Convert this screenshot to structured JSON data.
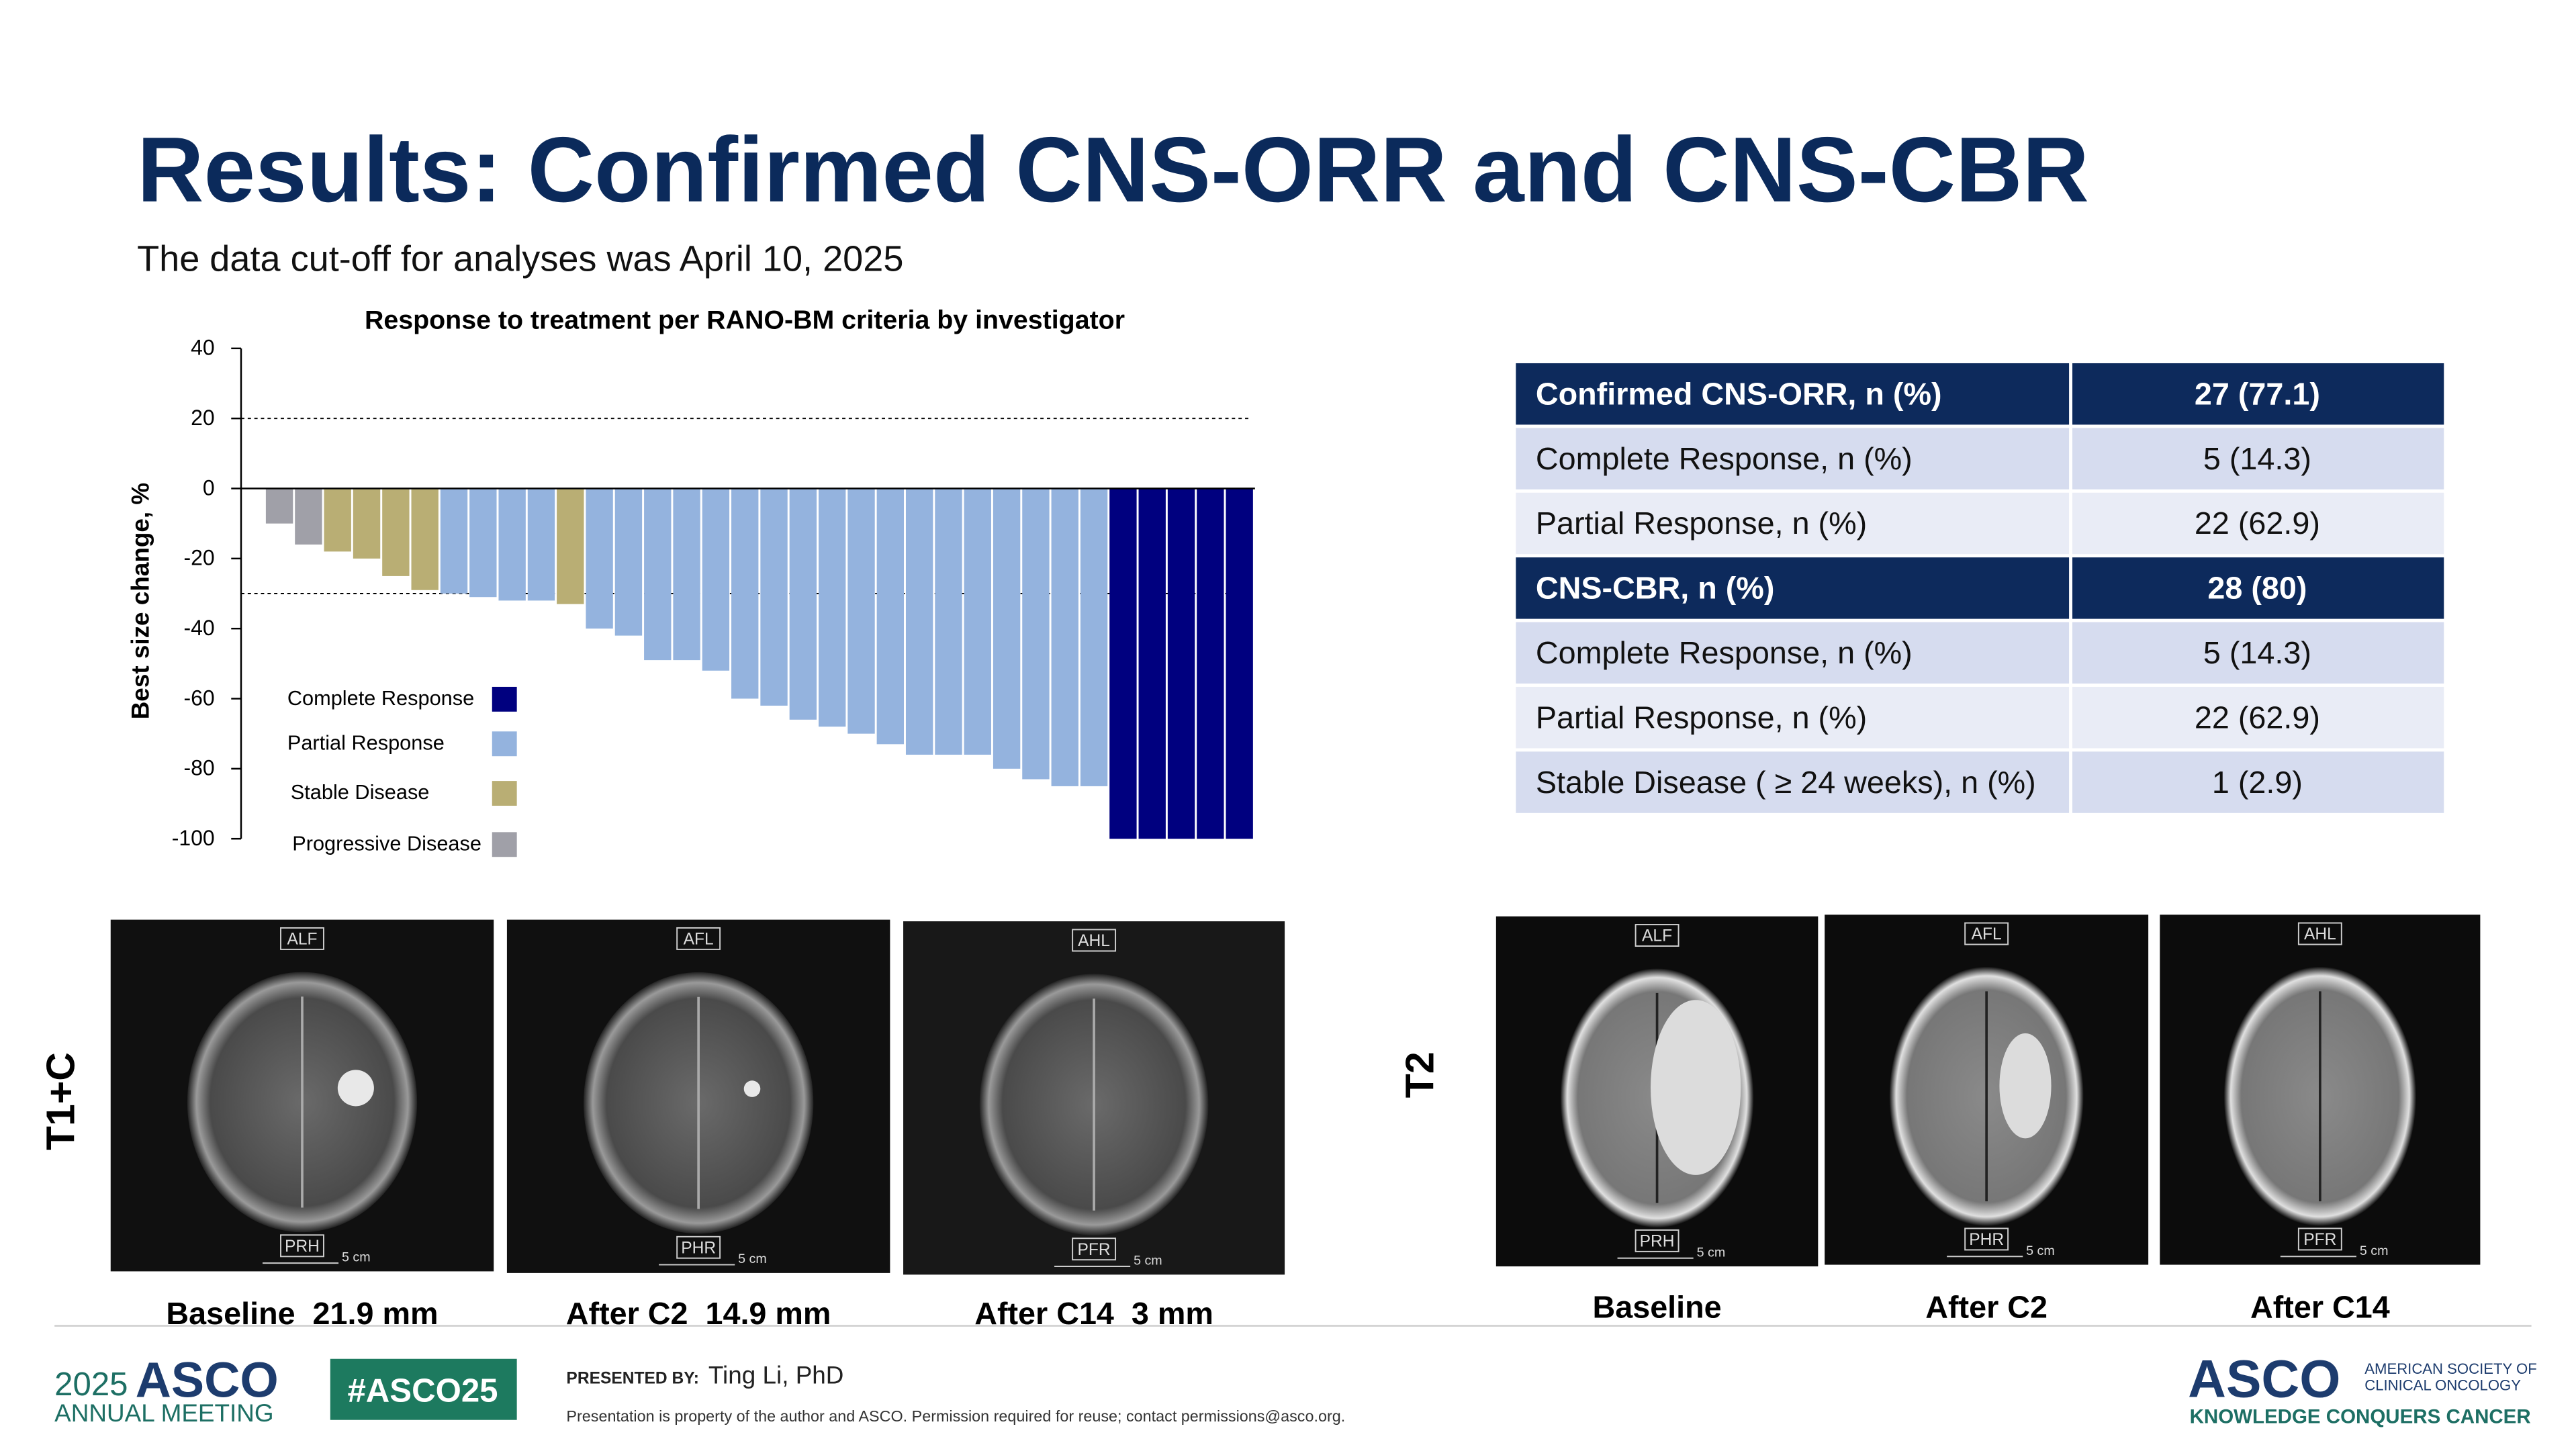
{
  "title": "Results: Confirmed CNS-ORR and CNS-CBR",
  "subtitle": "The data cut-off for analyses was April 10, 2025",
  "chart_data": {
    "type": "bar",
    "title": "Response to treatment per RANO-BM criteria by investigator",
    "y_label": "Best size change, %",
    "ylim": [
      -100,
      40
    ],
    "yticks": [
      40,
      20,
      0,
      -20,
      -40,
      -60,
      -80,
      -100
    ],
    "reference_lines": [
      20,
      -30
    ],
    "series": [
      {
        "name": "Complete Response",
        "color": "#00007f",
        "values": [
          null,
          null,
          null,
          null,
          null,
          null,
          null,
          null,
          null,
          null,
          null,
          null,
          null,
          null,
          null,
          null,
          null,
          null,
          null,
          null,
          null,
          null,
          null,
          null,
          null,
          null,
          null,
          null,
          null,
          -100,
          -100,
          -100,
          -100,
          -100
        ]
      },
      {
        "name": "Partial Response",
        "color": "#94b3de",
        "values": [
          null,
          null,
          null,
          null,
          null,
          null,
          -30,
          -31,
          -32,
          -32,
          null,
          -40,
          -42,
          -49,
          -49,
          -52,
          -60,
          -62,
          -66,
          -68,
          -70,
          -73,
          -76,
          -76,
          -76,
          -80,
          -83,
          -85,
          -85,
          null,
          null,
          null,
          null,
          null
        ]
      },
      {
        "name": "Stable Disease",
        "color": "#b9ae74",
        "values": [
          null,
          null,
          -18,
          -20,
          -25,
          -29,
          null,
          null,
          null,
          null,
          -33,
          null,
          null,
          null,
          null,
          null,
          null,
          null,
          null,
          null,
          null,
          null,
          null,
          null,
          null,
          null,
          null,
          null,
          null,
          null,
          null,
          null,
          null,
          null
        ]
      },
      {
        "name": "Progressive Disease",
        "color": "#a0a0a8",
        "values": [
          -10,
          -16,
          null,
          null,
          null,
          null,
          null,
          null,
          null,
          null,
          null,
          null,
          null,
          null,
          null,
          null,
          null,
          null,
          null,
          null,
          null,
          null,
          null,
          null,
          null,
          null,
          null,
          null,
          null,
          null,
          null,
          null,
          null,
          null
        ]
      }
    ]
  },
  "table": {
    "sections": [
      {
        "header": [
          "Confirmed CNS-ORR, n (%)",
          "27 (77.1)"
        ],
        "rows": [
          [
            "Complete Response, n (%)",
            "5 (14.3)"
          ],
          [
            "Partial Response, n (%)",
            "22 (62.9)"
          ]
        ]
      },
      {
        "header": [
          "CNS-CBR, n (%)",
          "28 (80)"
        ],
        "rows": [
          [
            "Complete Response, n (%)",
            "5 (14.3)"
          ],
          [
            "Partial Response, n (%)",
            "22 (62.9)"
          ],
          [
            "Stable Disease ( ≥ 24 weeks), n (%)",
            "1 (2.9)"
          ]
        ]
      }
    ]
  },
  "image_rows": [
    {
      "label": "T1+C",
      "images": [
        {
          "top": "ALF",
          "bottom": "PRH",
          "scale": "5 cm",
          "caption": "Baseline  21.9 mm"
        },
        {
          "top": "AFL",
          "bottom": "PHR",
          "scale": "5 cm",
          "caption": "After C2  14.9 mm"
        },
        {
          "top": "AHL",
          "bottom": "PFR",
          "scale": "5 cm",
          "caption": "After C14  3 mm"
        }
      ]
    },
    {
      "label": "T2",
      "images": [
        {
          "top": "ALF",
          "bottom": "PRH",
          "scale": "5 cm",
          "caption": "Baseline"
        },
        {
          "top": "AFL",
          "bottom": "PHR",
          "scale": "5 cm",
          "caption": "After C2"
        },
        {
          "top": "AHL",
          "bottom": "PFR",
          "scale": "5 cm",
          "caption": "After C14"
        }
      ]
    }
  ],
  "footer": {
    "meeting_year": "2025",
    "meeting_name": "ASCO",
    "meeting_sub": "ANNUAL MEETING",
    "hashtag": "#ASCO25",
    "presented_by": "PRESENTED BY:",
    "presenter": "Ting Li, PhD",
    "notice": "Presentation is property of the author and ASCO. Permission required for reuse; contact permissions@asco.org.",
    "logo": "ASCO",
    "society_line1": "AMERICAN SOCIETY OF",
    "society_line2": "CLINICAL ONCOLOGY",
    "tagline": "KNOWLEDGE CONQUERS CANCER"
  }
}
